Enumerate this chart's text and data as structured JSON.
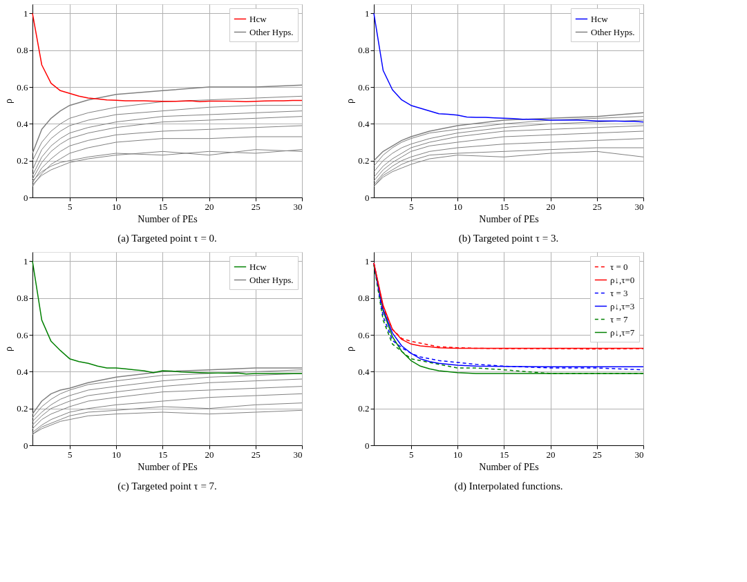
{
  "chart_data": [
    {
      "type": "line",
      "title": "(a) Targeted point τ = 0.",
      "xlabel": "Number of PEs",
      "ylabel": "ρ",
      "x": [
        1,
        2,
        3,
        4,
        5,
        6,
        7,
        8,
        9,
        10,
        11,
        12,
        13,
        14,
        15,
        16,
        17,
        18,
        19,
        20,
        21,
        22,
        23,
        24,
        25,
        26,
        27,
        28,
        29,
        30
      ],
      "xlim": [
        1,
        30
      ],
      "xticks": [
        5,
        10,
        15,
        20,
        25,
        30
      ],
      "ylim": [
        0,
        1.05
      ],
      "yticks": [
        0,
        0.2,
        0.4,
        0.6,
        0.8,
        1
      ],
      "grid": true,
      "legend": "top right",
      "line_style": "solid",
      "marker": "none",
      "series": [
        {
          "name": "Hcw",
          "color": "#ff0000",
          "values": [
            1.0,
            0.72,
            0.62,
            0.58,
            0.565,
            0.55,
            0.54,
            0.535,
            0.53,
            0.528,
            0.525,
            0.525,
            0.525,
            0.523,
            0.522,
            0.522,
            0.523,
            0.525,
            0.52,
            0.523,
            0.523,
            0.523,
            0.522,
            0.52,
            0.522,
            0.524,
            0.525,
            0.525,
            0.527,
            0.527
          ]
        },
        {
          "name": "Other Hyps.",
          "color": "#808080",
          "x": [
            1,
            2,
            3,
            4,
            5,
            7,
            10,
            15,
            20,
            25,
            30
          ],
          "values": [
            0.24,
            0.37,
            0.43,
            0.47,
            0.5,
            0.53,
            0.56,
            0.58,
            0.6,
            0.6,
            0.61
          ]
        },
        {
          "color": "#808080",
          "x": [
            1,
            2,
            3,
            4,
            5,
            7,
            10,
            15,
            20,
            25,
            30
          ],
          "values": [
            0.2,
            0.3,
            0.36,
            0.4,
            0.43,
            0.46,
            0.49,
            0.52,
            0.53,
            0.54,
            0.55
          ]
        },
        {
          "color": "#808080",
          "x": [
            1,
            2,
            3,
            4,
            5,
            7,
            10,
            15,
            20,
            25,
            30
          ],
          "values": [
            0.15,
            0.26,
            0.32,
            0.36,
            0.39,
            0.42,
            0.45,
            0.47,
            0.49,
            0.5,
            0.5
          ]
        },
        {
          "color": "#808080",
          "x": [
            1,
            2,
            3,
            4,
            5,
            7,
            10,
            15,
            20,
            25,
            30
          ],
          "values": [
            0.12,
            0.22,
            0.28,
            0.32,
            0.35,
            0.38,
            0.41,
            0.44,
            0.45,
            0.46,
            0.47
          ]
        },
        {
          "color": "#808080",
          "x": [
            1,
            2,
            3,
            4,
            5,
            7,
            10,
            15,
            20,
            25,
            30
          ],
          "values": [
            0.1,
            0.19,
            0.25,
            0.29,
            0.32,
            0.35,
            0.38,
            0.41,
            0.42,
            0.43,
            0.44
          ]
        },
        {
          "color": "#808080",
          "x": [
            1,
            2,
            3,
            4,
            5,
            7,
            10,
            15,
            20,
            25,
            30
          ],
          "values": [
            0.08,
            0.16,
            0.21,
            0.25,
            0.28,
            0.31,
            0.34,
            0.36,
            0.37,
            0.38,
            0.39
          ]
        },
        {
          "color": "#808080",
          "x": [
            1,
            2,
            3,
            4,
            5,
            7,
            10,
            15,
            20,
            25,
            30
          ],
          "values": [
            0.06,
            0.13,
            0.18,
            0.21,
            0.24,
            0.27,
            0.3,
            0.32,
            0.32,
            0.33,
            0.33
          ]
        },
        {
          "color": "#808080",
          "x": [
            1,
            2,
            3,
            4,
            5,
            7,
            10,
            15,
            20,
            25,
            30
          ],
          "values": [
            0.09,
            0.14,
            0.17,
            0.19,
            0.2,
            0.22,
            0.24,
            0.23,
            0.25,
            0.24,
            0.26
          ]
        },
        {
          "color": "#808080",
          "x": [
            1,
            2,
            3,
            4,
            5,
            7,
            10,
            15,
            20,
            25,
            30
          ],
          "values": [
            0.07,
            0.12,
            0.15,
            0.17,
            0.19,
            0.21,
            0.23,
            0.25,
            0.23,
            0.26,
            0.25
          ]
        }
      ]
    },
    {
      "type": "line",
      "title": "(b) Targeted point τ = 3.",
      "xlabel": "Number of PEs",
      "ylabel": "ρ",
      "x": [
        1,
        2,
        3,
        4,
        5,
        6,
        7,
        8,
        9,
        10,
        11,
        12,
        13,
        14,
        15,
        16,
        17,
        18,
        19,
        20,
        21,
        22,
        23,
        24,
        25,
        26,
        27,
        28,
        29,
        30
      ],
      "xlim": [
        1,
        30
      ],
      "xticks": [
        5,
        10,
        15,
        20,
        25,
        30
      ],
      "ylim": [
        0,
        1.05
      ],
      "yticks": [
        0,
        0.2,
        0.4,
        0.6,
        0.8,
        1
      ],
      "grid": true,
      "legend": "top right",
      "line_style": "solid",
      "marker": "none",
      "series": [
        {
          "name": "Hcw",
          "color": "#0000ff",
          "values": [
            1.0,
            0.69,
            0.585,
            0.53,
            0.5,
            0.485,
            0.47,
            0.455,
            0.452,
            0.447,
            0.437,
            0.435,
            0.435,
            0.432,
            0.43,
            0.428,
            0.425,
            0.425,
            0.423,
            0.42,
            0.42,
            0.42,
            0.42,
            0.418,
            0.415,
            0.415,
            0.415,
            0.413,
            0.413,
            0.41
          ]
        },
        {
          "name": "Other Hyps.",
          "color": "#808080",
          "x": [
            1,
            2,
            3,
            4,
            5,
            7,
            10,
            15,
            20,
            25,
            30
          ],
          "values": [
            0.2,
            0.25,
            0.28,
            0.31,
            0.33,
            0.36,
            0.39,
            0.42,
            0.43,
            0.44,
            0.46
          ]
        },
        {
          "color": "#808080",
          "x": [
            1,
            2,
            3,
            4,
            5,
            7,
            10,
            15,
            20,
            25,
            30
          ],
          "values": [
            0.17,
            0.23,
            0.27,
            0.3,
            0.32,
            0.35,
            0.37,
            0.4,
            0.42,
            0.43,
            0.44
          ]
        },
        {
          "color": "#808080",
          "x": [
            1,
            2,
            3,
            4,
            5,
            7,
            10,
            15,
            20,
            25,
            30
          ],
          "values": [
            0.14,
            0.2,
            0.24,
            0.27,
            0.29,
            0.32,
            0.35,
            0.38,
            0.4,
            0.41,
            0.42
          ]
        },
        {
          "color": "#808080",
          "x": [
            1,
            2,
            3,
            4,
            5,
            7,
            10,
            15,
            20,
            25,
            30
          ],
          "values": [
            0.11,
            0.17,
            0.21,
            0.24,
            0.27,
            0.3,
            0.33,
            0.36,
            0.37,
            0.38,
            0.39
          ]
        },
        {
          "color": "#808080",
          "x": [
            1,
            2,
            3,
            4,
            5,
            7,
            10,
            15,
            20,
            25,
            30
          ],
          "values": [
            0.09,
            0.15,
            0.19,
            0.22,
            0.25,
            0.28,
            0.3,
            0.33,
            0.34,
            0.35,
            0.36
          ]
        },
        {
          "color": "#808080",
          "x": [
            1,
            2,
            3,
            4,
            5,
            7,
            10,
            15,
            20,
            25,
            30
          ],
          "values": [
            0.07,
            0.13,
            0.17,
            0.2,
            0.22,
            0.25,
            0.27,
            0.29,
            0.3,
            0.31,
            0.32
          ]
        },
        {
          "color": "#808080",
          "x": [
            1,
            2,
            3,
            4,
            5,
            7,
            10,
            15,
            20,
            25,
            30
          ],
          "values": [
            0.06,
            0.12,
            0.15,
            0.18,
            0.2,
            0.23,
            0.24,
            0.25,
            0.26,
            0.27,
            0.27
          ]
        },
        {
          "color": "#808080",
          "x": [
            1,
            2,
            3,
            4,
            5,
            7,
            10,
            15,
            20,
            25,
            30
          ],
          "values": [
            0.06,
            0.11,
            0.14,
            0.16,
            0.18,
            0.21,
            0.23,
            0.22,
            0.24,
            0.25,
            0.22
          ]
        }
      ]
    },
    {
      "type": "line",
      "title": "(c) Targeted point τ = 7.",
      "xlabel": "Number of PEs",
      "ylabel": "ρ",
      "x": [
        1,
        2,
        3,
        4,
        5,
        6,
        7,
        8,
        9,
        10,
        11,
        12,
        13,
        14,
        15,
        16,
        17,
        18,
        19,
        20,
        21,
        22,
        23,
        24,
        25,
        26,
        27,
        28,
        29,
        30
      ],
      "xlim": [
        1,
        30
      ],
      "xticks": [
        5,
        10,
        15,
        20,
        25,
        30
      ],
      "ylim": [
        0,
        1.05
      ],
      "yticks": [
        0,
        0.2,
        0.4,
        0.6,
        0.8,
        1
      ],
      "grid": true,
      "legend": "top right",
      "line_style": "solid",
      "marker": "none",
      "series": [
        {
          "name": "Hcw",
          "color": "#008000",
          "values": [
            1.0,
            0.68,
            0.565,
            0.515,
            0.47,
            0.455,
            0.445,
            0.43,
            0.42,
            0.42,
            0.415,
            0.41,
            0.405,
            0.395,
            0.405,
            0.403,
            0.398,
            0.397,
            0.395,
            0.393,
            0.393,
            0.392,
            0.393,
            0.387,
            0.39,
            0.39,
            0.39,
            0.39,
            0.39,
            0.39
          ]
        },
        {
          "name": "Other Hyps.",
          "color": "#808080",
          "x": [
            1,
            2,
            3,
            4,
            5,
            7,
            10,
            15,
            20,
            25,
            30
          ],
          "values": [
            0.17,
            0.24,
            0.28,
            0.3,
            0.31,
            0.34,
            0.37,
            0.4,
            0.41,
            0.42,
            0.42
          ]
        },
        {
          "color": "#808080",
          "x": [
            1,
            2,
            3,
            4,
            5,
            7,
            10,
            15,
            20,
            25,
            30
          ],
          "values": [
            0.15,
            0.21,
            0.25,
            0.28,
            0.3,
            0.33,
            0.35,
            0.38,
            0.39,
            0.4,
            0.41
          ]
        },
        {
          "color": "#808080",
          "x": [
            1,
            2,
            3,
            4,
            5,
            7,
            10,
            15,
            20,
            25,
            30
          ],
          "values": [
            0.13,
            0.18,
            0.22,
            0.25,
            0.27,
            0.3,
            0.32,
            0.35,
            0.37,
            0.38,
            0.39
          ]
        },
        {
          "color": "#808080",
          "x": [
            1,
            2,
            3,
            4,
            5,
            7,
            10,
            15,
            20,
            25,
            30
          ],
          "values": [
            0.11,
            0.16,
            0.2,
            0.22,
            0.24,
            0.27,
            0.29,
            0.32,
            0.34,
            0.35,
            0.36
          ]
        },
        {
          "color": "#808080",
          "x": [
            1,
            2,
            3,
            4,
            5,
            7,
            10,
            15,
            20,
            25,
            30
          ],
          "values": [
            0.09,
            0.14,
            0.17,
            0.19,
            0.21,
            0.24,
            0.26,
            0.29,
            0.3,
            0.31,
            0.32
          ]
        },
        {
          "color": "#808080",
          "x": [
            1,
            2,
            3,
            4,
            5,
            7,
            10,
            15,
            20,
            25,
            30
          ],
          "values": [
            0.07,
            0.11,
            0.14,
            0.16,
            0.18,
            0.2,
            0.22,
            0.24,
            0.26,
            0.27,
            0.28
          ]
        },
        {
          "color": "#808080",
          "x": [
            1,
            2,
            3,
            4,
            5,
            7,
            10,
            15,
            20,
            25,
            30
          ],
          "values": [
            0.06,
            0.1,
            0.12,
            0.14,
            0.16,
            0.18,
            0.19,
            0.21,
            0.2,
            0.22,
            0.23
          ]
        },
        {
          "color": "#808080",
          "x": [
            1,
            2,
            3,
            4,
            5,
            7,
            10,
            15,
            20,
            25,
            30
          ],
          "values": [
            0.06,
            0.09,
            0.11,
            0.13,
            0.14,
            0.16,
            0.17,
            0.18,
            0.17,
            0.18,
            0.19
          ]
        }
      ]
    },
    {
      "type": "line",
      "title": "(d) Interpolated functions.",
      "xlabel": "Number of PEs",
      "ylabel": "ρ",
      "x": [
        1,
        2,
        3,
        4,
        5,
        6,
        7,
        8,
        10,
        12,
        15,
        20,
        25,
        30
      ],
      "xlim": [
        1,
        30
      ],
      "xticks": [
        5,
        10,
        15,
        20,
        25,
        30
      ],
      "ylim": [
        0,
        1.05
      ],
      "yticks": [
        0,
        0.2,
        0.4,
        0.6,
        0.8,
        1
      ],
      "grid": true,
      "legend": "top right",
      "marker": "none",
      "series": [
        {
          "name": "τ = 0",
          "color": "#ff0000",
          "line_style": "dashed",
          "values": [
            0.99,
            0.75,
            0.63,
            0.58,
            0.565,
            0.555,
            0.545,
            0.535,
            0.53,
            0.527,
            0.525,
            0.525,
            0.523,
            0.525
          ]
        },
        {
          "name": "ρ↓,τ=0",
          "color": "#ff0000",
          "line_style": "solid",
          "values": [
            0.99,
            0.76,
            0.63,
            0.575,
            0.55,
            0.54,
            0.535,
            0.53,
            0.527,
            0.527,
            0.527,
            0.527,
            0.527,
            0.527
          ]
        },
        {
          "name": "τ = 3",
          "color": "#0000ff",
          "line_style": "dashed",
          "values": [
            0.99,
            0.7,
            0.57,
            0.53,
            0.5,
            0.48,
            0.47,
            0.46,
            0.45,
            0.44,
            0.43,
            0.42,
            0.42,
            0.41
          ]
        },
        {
          "name": "ρ↓,τ=3",
          "color": "#0000ff",
          "line_style": "solid",
          "values": [
            0.99,
            0.74,
            0.61,
            0.54,
            0.5,
            0.47,
            0.455,
            0.445,
            0.435,
            0.43,
            0.428,
            0.427,
            0.427,
            0.427
          ]
        },
        {
          "name": "τ = 7",
          "color": "#008000",
          "line_style": "dashed",
          "values": [
            0.98,
            0.68,
            0.55,
            0.51,
            0.47,
            0.46,
            0.45,
            0.44,
            0.42,
            0.42,
            0.41,
            0.39,
            0.39,
            0.39
          ]
        },
        {
          "name": "ρ↓,τ=7",
          "color": "#008000",
          "line_style": "solid",
          "values": [
            0.98,
            0.73,
            0.59,
            0.51,
            0.46,
            0.43,
            0.415,
            0.405,
            0.395,
            0.39,
            0.39,
            0.39,
            0.39,
            0.39
          ]
        }
      ]
    }
  ]
}
